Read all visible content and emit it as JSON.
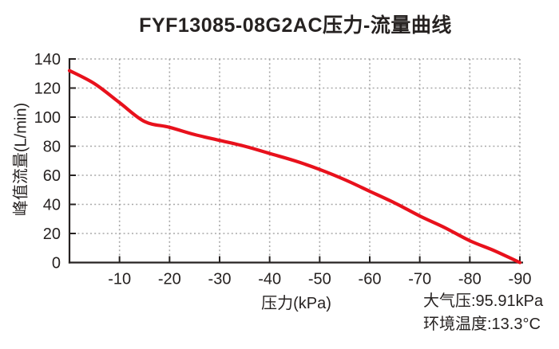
{
  "chart_data": {
    "type": "line",
    "title": "FYF13085-08G2AC压力-流量曲线",
    "xlabel": "压力(kPa)",
    "ylabel": "峰值流量(L/min)",
    "xlim": [
      0,
      -90
    ],
    "ylim": [
      0,
      140
    ],
    "x_ticks": [
      -10,
      -20,
      -30,
      -40,
      -50,
      -60,
      -70,
      -80,
      -90
    ],
    "y_ticks": [
      0,
      20,
      40,
      60,
      80,
      100,
      120,
      140
    ],
    "grid": true,
    "grid_style": "dotted",
    "legend": false,
    "series": [
      {
        "name": "压力-流量曲线",
        "color": "#e8111c",
        "x": [
          0,
          -5,
          -10,
          -15,
          -20,
          -25,
          -30,
          -35,
          -40,
          -45,
          -50,
          -55,
          -60,
          -65,
          -70,
          -75,
          -80,
          -85,
          -90
        ],
        "y": [
          132,
          123,
          110,
          97,
          93,
          88,
          84,
          80,
          75,
          70,
          64,
          57,
          49,
          41,
          32,
          24,
          15,
          8,
          0
        ]
      }
    ]
  },
  "annotations": {
    "atmospheric_pressure": "大气压:95.91kPa",
    "ambient_temperature": "环境温度:13.3°C"
  },
  "colors": {
    "curve": "#e8111c",
    "axis": "#262221",
    "grid": "#a8a8a8",
    "text": "#262221",
    "background": "#ffffff"
  }
}
